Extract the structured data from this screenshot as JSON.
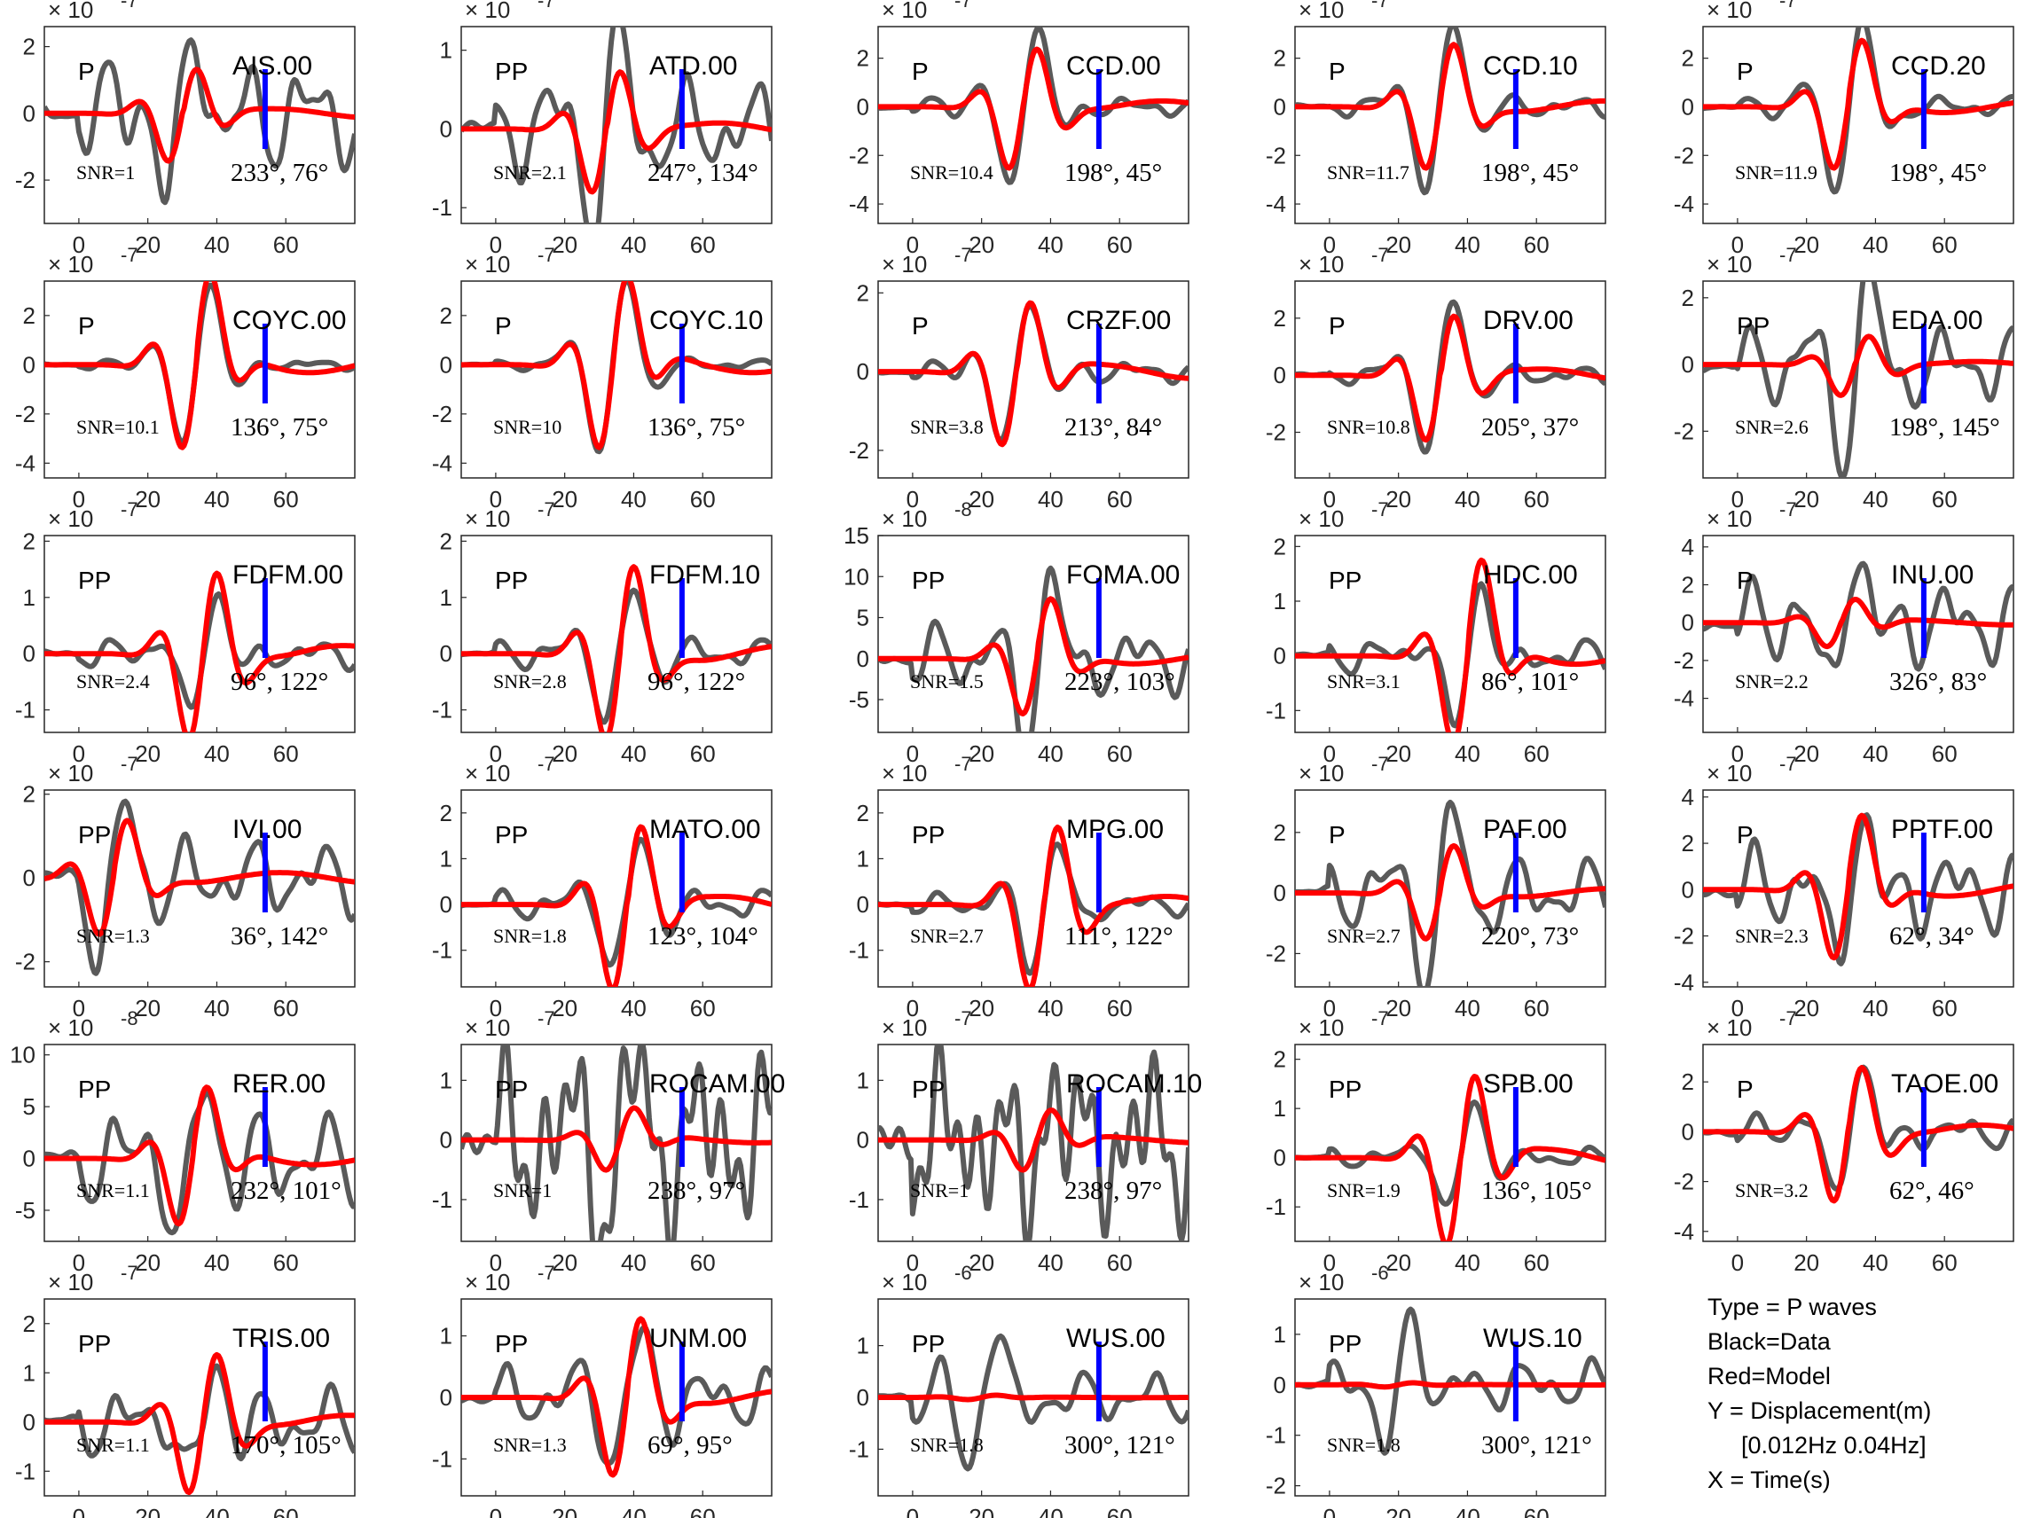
{
  "colors": {
    "data": "#5a5a5a",
    "model": "#ff0000",
    "marker": "#0000ff",
    "axis": "#262626"
  },
  "legend": {
    "type": "Type = P waves",
    "black": "Black=Data",
    "red": "Red=Model",
    "y": "Y = Displacement(m)",
    "band": "[0.012Hz 0.04Hz]",
    "x": "X = Time(s)"
  },
  "chart_data": [
    {
      "type": "line",
      "station": "AIS.00",
      "phase": "P",
      "snr": "SNR=1",
      "angles": "233°, 76°",
      "multiplier": "× 10",
      "exponent": "-7",
      "ylim": [
        -3.3,
        2.6
      ],
      "yticks": [
        -2,
        0,
        2
      ],
      "xlim": [
        -10,
        80
      ],
      "xticks": [
        0,
        20,
        40,
        60
      ],
      "model_amp": 1.7,
      "data_amp": 3.0,
      "t0": 30,
      "noise": 0.55
    },
    {
      "type": "line",
      "station": "ATD.00",
      "phase": "PP",
      "snr": "SNR=2.1",
      "angles": "247°, 134°",
      "multiplier": "× 10",
      "exponent": "-7",
      "ylim": [
        -1.2,
        1.3
      ],
      "yticks": [
        -1,
        0,
        1
      ],
      "xlim": [
        -10,
        80
      ],
      "xticks": [
        0,
        20,
        40,
        60
      ],
      "model_amp": 0.95,
      "data_amp": 1.2,
      "t0": 32,
      "noise": 0.5
    },
    {
      "type": "line",
      "station": "CCD.00",
      "phase": "P",
      "snr": "SNR=10.4",
      "angles": "198°, 45°",
      "multiplier": "× 10",
      "exponent": "-7",
      "ylim": [
        -4.8,
        3.3
      ],
      "yticks": [
        -4,
        -2,
        0,
        2
      ],
      "xlim": [
        -10,
        80
      ],
      "xticks": [
        0,
        20,
        40,
        60
      ],
      "model_amp": 3.0,
      "data_amp": 4.0,
      "t0": 32,
      "noise": 0.1
    },
    {
      "type": "line",
      "station": "CCD.10",
      "phase": "P",
      "snr": "SNR=11.7",
      "angles": "198°, 45°",
      "multiplier": "× 10",
      "exponent": "-7",
      "ylim": [
        -4.8,
        3.3
      ],
      "yticks": [
        -4,
        -2,
        0,
        2
      ],
      "xlim": [
        -10,
        80
      ],
      "xticks": [
        0,
        20,
        40,
        60
      ],
      "model_amp": 3.0,
      "data_amp": 4.0,
      "t0": 32,
      "noise": 0.1
    },
    {
      "type": "line",
      "station": "CCD.20",
      "phase": "P",
      "snr": "SNR=11.9",
      "angles": "198°, 45°",
      "multiplier": "× 10",
      "exponent": "-7",
      "ylim": [
        -4.8,
        3.3
      ],
      "yticks": [
        -4,
        -2,
        0,
        2
      ],
      "xlim": [
        -10,
        80
      ],
      "xticks": [
        0,
        20,
        40,
        60
      ],
      "model_amp": 3.0,
      "data_amp": 4.0,
      "t0": 32,
      "noise": 0.1
    },
    {
      "type": "line",
      "station": "COYC.00",
      "phase": "P",
      "snr": "SNR=10.1",
      "angles": "136°, 75°",
      "multiplier": "× 10",
      "exponent": "-7",
      "ylim": [
        -4.6,
        3.4
      ],
      "yticks": [
        -4,
        -2,
        0,
        2
      ],
      "xlim": [
        -10,
        80
      ],
      "xticks": [
        0,
        20,
        40,
        60
      ],
      "model_amp": 4.0,
      "data_amp": 4.0,
      "t0": 34,
      "noise": 0.05
    },
    {
      "type": "line",
      "station": "COYC.10",
      "phase": "P",
      "snr": "SNR=10",
      "angles": "136°, 75°",
      "multiplier": "× 10",
      "exponent": "-7",
      "ylim": [
        -4.6,
        3.4
      ],
      "yticks": [
        -4,
        -2,
        0,
        2
      ],
      "xlim": [
        -10,
        80
      ],
      "xticks": [
        0,
        20,
        40,
        60
      ],
      "model_amp": 4.0,
      "data_amp": 4.0,
      "t0": 34,
      "noise": 0.05
    },
    {
      "type": "line",
      "station": "CRZF.00",
      "phase": "P",
      "snr": "SNR=3.8",
      "angles": "213°, 84°",
      "multiplier": "× 10",
      "exponent": "-7",
      "ylim": [
        -2.7,
        2.3
      ],
      "yticks": [
        -2,
        0,
        2
      ],
      "xlim": [
        -10,
        80
      ],
      "xticks": [
        0,
        20,
        40,
        60
      ],
      "model_amp": 2.2,
      "data_amp": 2.3,
      "t0": 30,
      "noise": 0.12
    },
    {
      "type": "line",
      "station": "DRV.00",
      "phase": "P",
      "snr": "SNR=10.8",
      "angles": "205°, 37°",
      "multiplier": "× 10",
      "exponent": "-7",
      "ylim": [
        -3.6,
        3.3
      ],
      "yticks": [
        -2,
        0,
        2
      ],
      "xlim": [
        -10,
        80
      ],
      "xticks": [
        0,
        20,
        40,
        60
      ],
      "model_amp": 2.7,
      "data_amp": 3.0,
      "t0": 32,
      "noise": 0.1
    },
    {
      "type": "line",
      "station": "EDA.00",
      "phase": "PP",
      "snr": "SNR=2.6",
      "angles": "198°, 145°",
      "multiplier": "× 10",
      "exponent": "-7",
      "ylim": [
        -3.4,
        2.5
      ],
      "yticks": [
        -2,
        0,
        2
      ],
      "xlim": [
        -10,
        80
      ],
      "xticks": [
        0,
        20,
        40,
        60
      ],
      "model_amp": 1.1,
      "data_amp": 2.9,
      "t0": 34,
      "noise": 0.4
    },
    {
      "type": "line",
      "station": "FDFM.00",
      "phase": "PP",
      "snr": "SNR=2.4",
      "angles": "96°, 122°",
      "multiplier": "× 10",
      "exponent": "-7",
      "ylim": [
        -1.4,
        2.1
      ],
      "yticks": [
        -1,
        0,
        1,
        2
      ],
      "xlim": [
        -10,
        80
      ],
      "xticks": [
        0,
        20,
        40,
        60
      ],
      "model_amp": 1.8,
      "data_amp": 1.3,
      "t0": 36,
      "noise": 0.2
    },
    {
      "type": "line",
      "station": "FDFM.10",
      "phase": "PP",
      "snr": "SNR=2.8",
      "angles": "96°, 122°",
      "multiplier": "× 10",
      "exponent": "-7",
      "ylim": [
        -1.4,
        2.1
      ],
      "yticks": [
        -1,
        0,
        1,
        2
      ],
      "xlim": [
        -10,
        80
      ],
      "xticks": [
        0,
        20,
        40,
        60
      ],
      "model_amp": 1.8,
      "data_amp": 1.3,
      "t0": 36,
      "noise": 0.2
    },
    {
      "type": "line",
      "station": "FOMA.00",
      "phase": "PP",
      "snr": "SNR=1.5",
      "angles": "223°, 103°",
      "multiplier": "× 10",
      "exponent": "-8",
      "ylim": [
        -9,
        15
      ],
      "yticks": [
        -5,
        0,
        5,
        10,
        15
      ],
      "xlim": [
        -10,
        80
      ],
      "xticks": [
        0,
        20,
        40,
        60
      ],
      "model_amp": 8.0,
      "data_amp": 12.0,
      "t0": 36,
      "noise": 0.35
    },
    {
      "type": "line",
      "station": "HDC.00",
      "phase": "PP",
      "snr": "SNR=3.1",
      "angles": "86°, 101°",
      "multiplier": "× 10",
      "exponent": "-7",
      "ylim": [
        -1.4,
        2.2
      ],
      "yticks": [
        -1,
        0,
        1,
        2
      ],
      "xlim": [
        -10,
        80
      ],
      "xticks": [
        0,
        20,
        40,
        60
      ],
      "model_amp": 1.9,
      "data_amp": 1.6,
      "t0": 40,
      "noise": 0.2
    },
    {
      "type": "line",
      "station": "INU.00",
      "phase": "P",
      "snr": "SNR=2.2",
      "angles": "326°, 83°",
      "multiplier": "× 10",
      "exponent": "-7",
      "ylim": [
        -5.8,
        4.6
      ],
      "yticks": [
        -4,
        -2,
        0,
        2,
        4
      ],
      "xlim": [
        -10,
        80
      ],
      "xticks": [
        0,
        20,
        40,
        60
      ],
      "model_amp": 1.5,
      "data_amp": 4.5,
      "t0": 30,
      "noise": 0.5
    },
    {
      "type": "line",
      "station": "IVI.00",
      "phase": "PP",
      "snr": "SNR=1.3",
      "angles": "36°, 142°",
      "multiplier": "× 10",
      "exponent": "-7",
      "ylim": [
        -2.6,
        2.1
      ],
      "yticks": [
        -2,
        0,
        2
      ],
      "xlim": [
        -10,
        80
      ],
      "xticks": [
        0,
        20,
        40,
        60
      ],
      "model_amp": 1.6,
      "data_amp": 2.0,
      "t0": 10,
      "noise": 0.45
    },
    {
      "type": "line",
      "station": "MATO.00",
      "phase": "PP",
      "snr": "SNR=1.8",
      "angles": "123°, 104°",
      "multiplier": "× 10",
      "exponent": "-7",
      "ylim": [
        -1.8,
        2.5
      ],
      "yticks": [
        -1,
        0,
        1,
        2
      ],
      "xlim": [
        -10,
        80
      ],
      "xticks": [
        0,
        20,
        40,
        60
      ],
      "model_amp": 2.2,
      "data_amp": 1.6,
      "t0": 38,
      "noise": 0.2
    },
    {
      "type": "line",
      "station": "MPG.00",
      "phase": "PP",
      "snr": "SNR=2.7",
      "angles": "111°, 122°",
      "multiplier": "× 10",
      "exponent": "-7",
      "ylim": [
        -1.8,
        2.5
      ],
      "yticks": [
        -1,
        0,
        1,
        2
      ],
      "xlim": [
        -10,
        80
      ],
      "xticks": [
        0,
        20,
        40,
        60
      ],
      "model_amp": 2.2,
      "data_amp": 1.6,
      "t0": 38,
      "noise": 0.15
    },
    {
      "type": "line",
      "station": "PAF.00",
      "phase": "P",
      "snr": "SNR=2.7",
      "angles": "220°, 73°",
      "multiplier": "× 10",
      "exponent": "-7",
      "ylim": [
        -3.1,
        3.4
      ],
      "yticks": [
        -2,
        0,
        2
      ],
      "xlim": [
        -10,
        80
      ],
      "xticks": [
        0,
        20,
        40,
        60
      ],
      "model_amp": 1.8,
      "data_amp": 2.8,
      "t0": 32,
      "noise": 0.4
    },
    {
      "type": "line",
      "station": "PPTF.00",
      "phase": "P",
      "snr": "SNR=2.3",
      "angles": "62°, 34°",
      "multiplier": "× 10",
      "exponent": "-7",
      "ylim": [
        -4.2,
        4.3
      ],
      "yticks": [
        -4,
        -2,
        0,
        2,
        4
      ],
      "xlim": [
        -10,
        80
      ],
      "xticks": [
        0,
        20,
        40,
        60
      ],
      "model_amp": 3.5,
      "data_amp": 3.8,
      "t0": 32,
      "noise": 0.5
    },
    {
      "type": "line",
      "station": "RER.00",
      "phase": "PP",
      "snr": "SNR=1.1",
      "angles": "232°, 101°",
      "multiplier": "× 10",
      "exponent": "-8",
      "ylim": [
        -8,
        11
      ],
      "yticks": [
        -5,
        0,
        5,
        10
      ],
      "xlim": [
        -10,
        80
      ],
      "xticks": [
        0,
        20,
        40,
        60
      ],
      "model_amp": 7.5,
      "data_amp": 9.0,
      "t0": 33,
      "noise": 0.5
    },
    {
      "type": "line",
      "station": "ROCAM.00",
      "phase": "PP",
      "snr": "SNR=1",
      "angles": "238°, 97°",
      "multiplier": "× 10",
      "exponent": "-7",
      "ylim": [
        -1.7,
        1.6
      ],
      "yticks": [
        -1,
        0,
        1
      ],
      "xlim": [
        -10,
        80
      ],
      "xticks": [
        0,
        20,
        40,
        60
      ],
      "model_amp": 0.6,
      "data_amp": 1.2,
      "t0": 36,
      "noise": 1.0
    },
    {
      "type": "line",
      "station": "ROCAM.10",
      "phase": "PP",
      "snr": "SNR=1",
      "angles": "238°, 97°",
      "multiplier": "× 10",
      "exponent": "-7",
      "ylim": [
        -1.7,
        1.6
      ],
      "yticks": [
        -1,
        0,
        1
      ],
      "xlim": [
        -10,
        80
      ],
      "xticks": [
        0,
        20,
        40,
        60
      ],
      "model_amp": 0.6,
      "data_amp": 1.2,
      "t0": 36,
      "noise": 1.0
    },
    {
      "type": "line",
      "station": "SPB.00",
      "phase": "PP",
      "snr": "SNR=1.9",
      "angles": "136°, 105°",
      "multiplier": "× 10",
      "exponent": "-7",
      "ylim": [
        -1.7,
        2.3
      ],
      "yticks": [
        -1,
        0,
        1,
        2
      ],
      "xlim": [
        -10,
        80
      ],
      "xticks": [
        0,
        20,
        40,
        60
      ],
      "model_amp": 2.1,
      "data_amp": 1.3,
      "t0": 38,
      "noise": 0.15
    },
    {
      "type": "line",
      "station": "TAOE.00",
      "phase": "P",
      "snr": "SNR=3.2",
      "angles": "62°, 46°",
      "multiplier": "× 10",
      "exponent": "-7",
      "ylim": [
        -4.4,
        3.5
      ],
      "yticks": [
        -4,
        -2,
        0,
        2
      ],
      "xlim": [
        -10,
        80
      ],
      "xticks": [
        0,
        20,
        40,
        60
      ],
      "model_amp": 3.3,
      "data_amp": 3.3,
      "t0": 32,
      "noise": 0.2
    },
    {
      "type": "line",
      "station": "TRIS.00",
      "phase": "PP",
      "snr": "SNR=1.1",
      "angles": "170°, 105°",
      "multiplier": "× 10",
      "exponent": "-7",
      "ylim": [
        -1.5,
        2.5
      ],
      "yticks": [
        -1,
        0,
        1,
        2
      ],
      "xlim": [
        -10,
        80
      ],
      "xticks": [
        0,
        20,
        40,
        60
      ],
      "model_amp": 1.7,
      "data_amp": 1.4,
      "t0": 36,
      "noise": 0.5
    },
    {
      "type": "line",
      "station": "UNM.00",
      "phase": "PP",
      "snr": "SNR=1.3",
      "angles": "69°, 95°",
      "multiplier": "× 10",
      "exponent": "-7",
      "ylim": [
        -1.6,
        1.6
      ],
      "yticks": [
        -1,
        0,
        1
      ],
      "xlim": [
        -10,
        80
      ],
      "xticks": [
        0,
        20,
        40,
        60
      ],
      "model_amp": 1.5,
      "data_amp": 1.1,
      "t0": 38,
      "noise": 0.45
    },
    {
      "type": "line",
      "station": "WUS.00",
      "phase": "PP",
      "snr": "SNR=1.8",
      "angles": "300°, 121°",
      "multiplier": "× 10",
      "exponent": "-6",
      "ylim": [
        -1.9,
        1.9
      ],
      "yticks": [
        -1,
        0,
        1
      ],
      "xlim": [
        -10,
        80
      ],
      "xticks": [
        0,
        20,
        40,
        60
      ],
      "model_amp": 0.05,
      "data_amp": 1.6,
      "t0": 20,
      "noise": 0.3
    },
    {
      "type": "line",
      "station": "WUS.10",
      "phase": "PP",
      "snr": "SNR=1.8",
      "angles": "300°, 121°",
      "multiplier": "× 10",
      "exponent": "-6",
      "ylim": [
        -2.2,
        1.7
      ],
      "yticks": [
        -2,
        -1,
        0,
        1
      ],
      "xlim": [
        -10,
        80
      ],
      "xticks": [
        0,
        20,
        40,
        60
      ],
      "model_amp": 0.05,
      "data_amp": 1.6,
      "t0": 20,
      "noise": 0.3
    }
  ]
}
